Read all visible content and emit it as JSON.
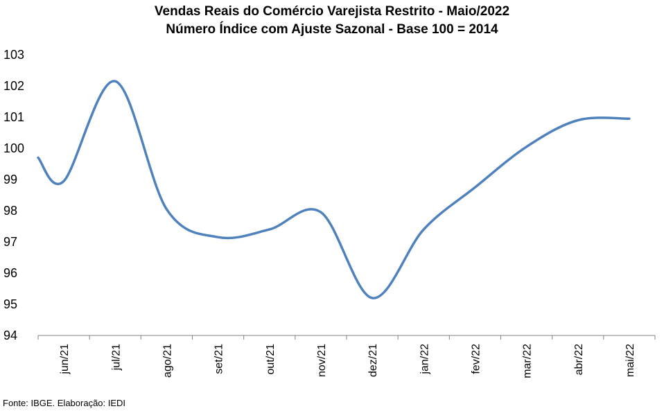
{
  "chart_data": {
    "type": "line",
    "title": "Vendas Reais do Comércio Varejista Restrito - Maio/2022",
    "subtitle": "Número Índice com Ajuste Sazonal - Base 100 = 2014",
    "xlabel": "",
    "ylabel": "",
    "categories": [
      "jun/21",
      "jul/21",
      "ago/21",
      "set/21",
      "out/21",
      "nov/21",
      "dez/21",
      "jan/22",
      "fev/22",
      "mar/22",
      "abr/22",
      "mai/22"
    ],
    "x_start_value": 99.7,
    "values": [
      98.95,
      102.15,
      98.05,
      97.15,
      97.4,
      97.95,
      95.2,
      97.4,
      98.75,
      100.05,
      100.9,
      100.95
    ],
    "yticks": [
      "94",
      "95",
      "96",
      "97",
      "98",
      "99",
      "100",
      "101",
      "102",
      "103"
    ],
    "ylim": [
      94,
      103
    ],
    "grid": false,
    "legend": "none",
    "line_color": "#4f81bd"
  },
  "source": "Fonte: IBGE. Elaboração: IEDI"
}
